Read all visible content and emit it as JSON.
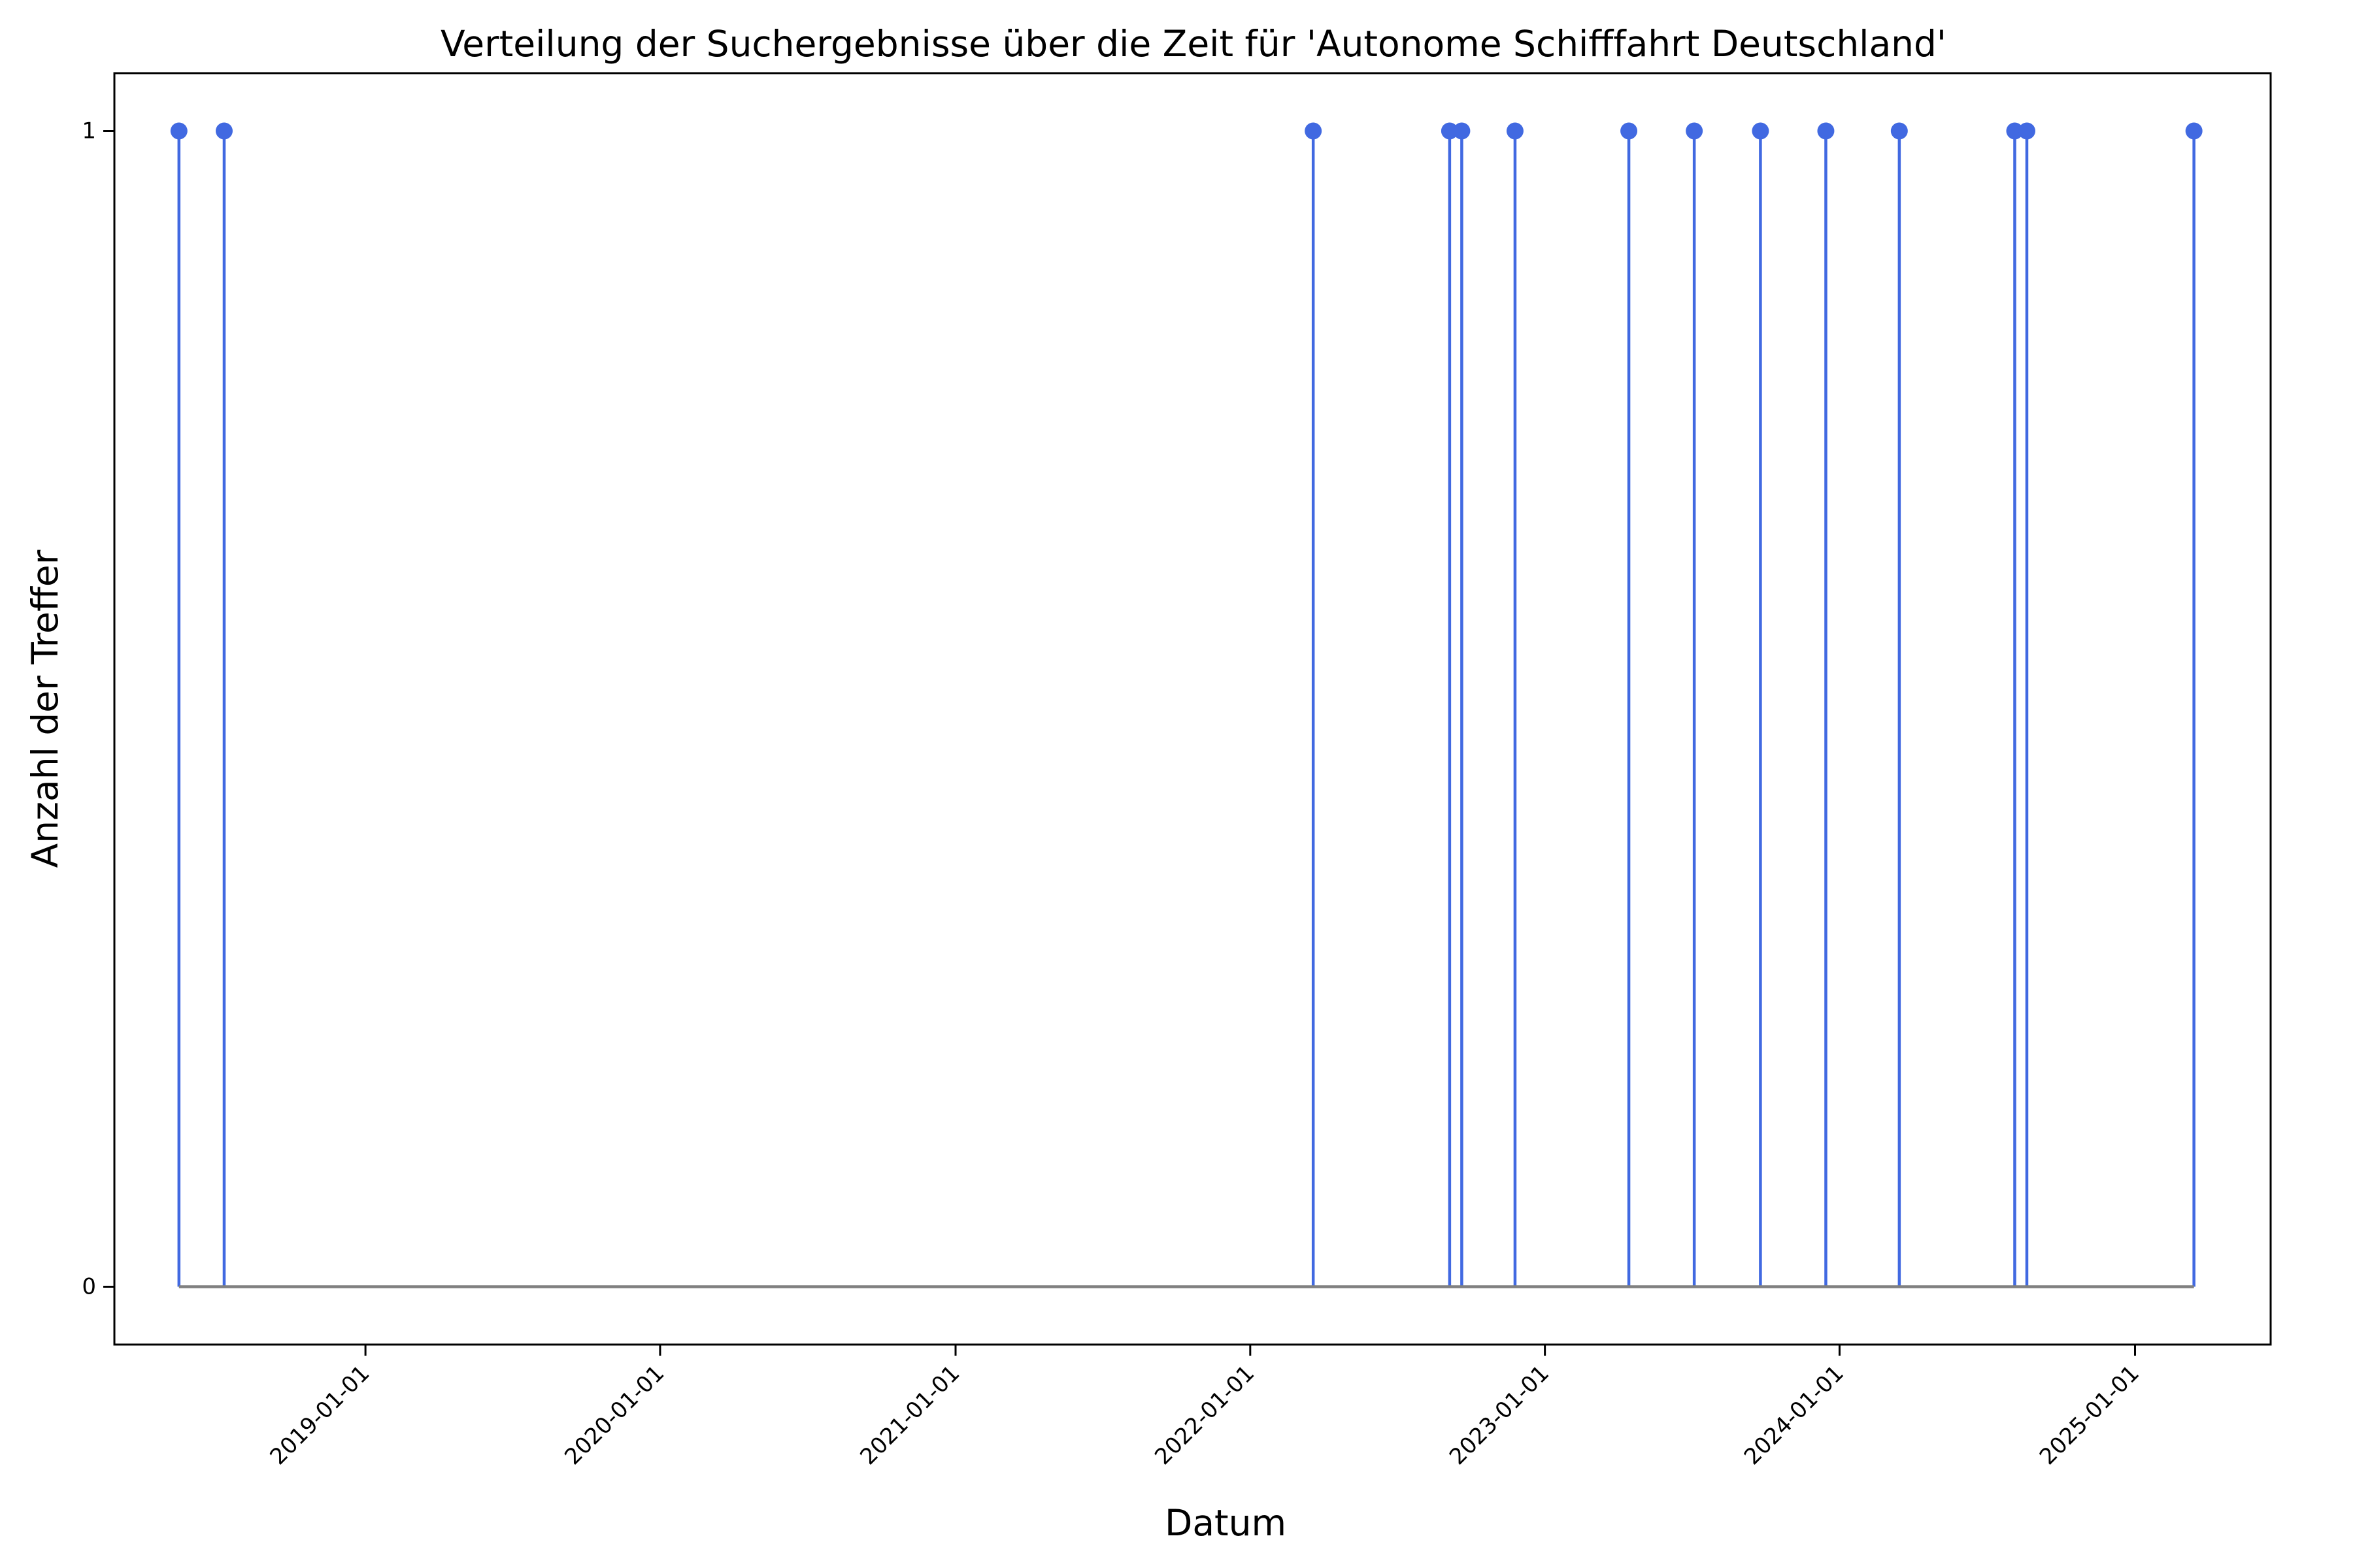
{
  "chart_data": {
    "type": "stem",
    "title": "Verteilung der Suchergebnisse über die Zeit für 'Autonome Schifffahrt Deutschland'",
    "xlabel": "Datum",
    "ylabel": "Anzahl der Treffer",
    "x_tick_labels": [
      "2019-01-01",
      "2020-01-01",
      "2021-01-01",
      "2022-01-01",
      "2023-01-01",
      "2024-01-01",
      "2025-01-01"
    ],
    "y_tick_labels": [
      "0",
      "1"
    ],
    "ylim": [
      -0.05,
      1.05
    ],
    "xlim": [
      "2018-02-24",
      "2025-06-18"
    ],
    "baseline": 0,
    "grid": false,
    "legend": "none",
    "series": [
      {
        "color": "#4169e1",
        "points": [
          {
            "x": "2018-05-15",
            "y": 1
          },
          {
            "x": "2018-07-10",
            "y": 1
          },
          {
            "x": "2022-03-20",
            "y": 1
          },
          {
            "x": "2022-09-05",
            "y": 1
          },
          {
            "x": "2022-09-20",
            "y": 1
          },
          {
            "x": "2022-11-25",
            "y": 1
          },
          {
            "x": "2023-04-15",
            "y": 1
          },
          {
            "x": "2023-07-05",
            "y": 1
          },
          {
            "x": "2023-09-25",
            "y": 1
          },
          {
            "x": "2023-12-15",
            "y": 1
          },
          {
            "x": "2024-03-15",
            "y": 1
          },
          {
            "x": "2024-08-05",
            "y": 1
          },
          {
            "x": "2024-08-20",
            "y": 1
          },
          {
            "x": "2025-03-15",
            "y": 1
          }
        ]
      }
    ],
    "baseline_color": "#808080"
  }
}
